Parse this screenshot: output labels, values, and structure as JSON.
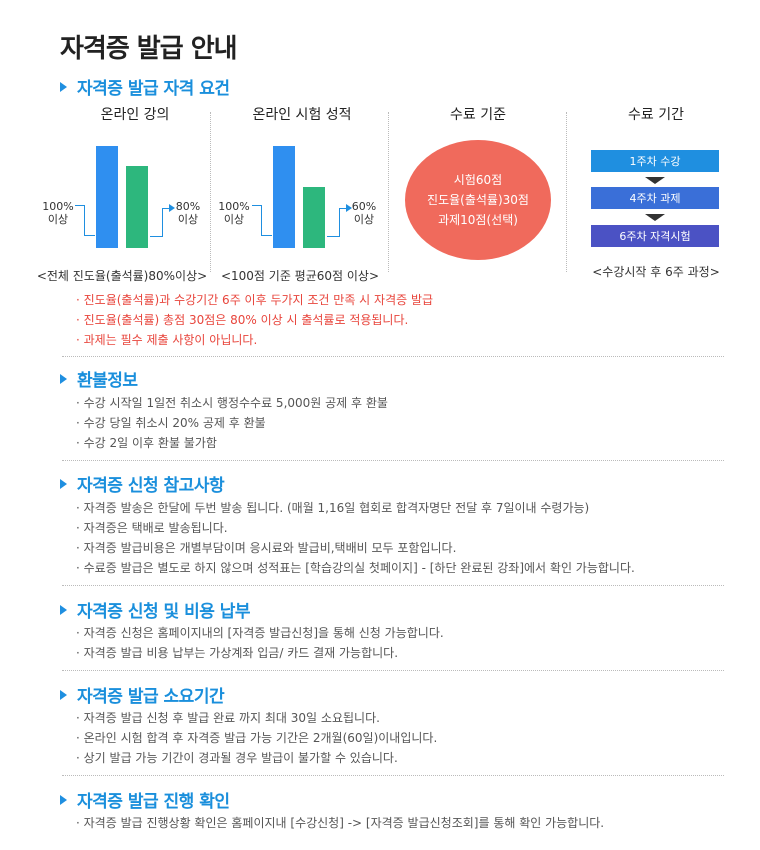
{
  "page_title": "자격증 발급 안내",
  "sections": {
    "requirements": {
      "title": "자격증 발급 자격 요건"
    },
    "refund": {
      "title": "환불정보"
    },
    "apply_notes": {
      "title": "자격증 신청 참고사항"
    },
    "apply_payment": {
      "title": "자격증 신청 및 비용 납부"
    },
    "duration": {
      "title": "자격증 발급 소요기간"
    },
    "progress": {
      "title": "자격증 발급 진행 확인"
    }
  },
  "columns": {
    "online_lecture": {
      "label": "온라인 강의",
      "left_value": "100%",
      "left_sub": "이상",
      "right_value": "80%",
      "right_sub": "이상",
      "bar_values": [
        100,
        80
      ],
      "caption": "<전체 진도율(출석률)80%이상>"
    },
    "online_exam": {
      "label": "온라인 시험 성적",
      "left_value": "100%",
      "left_sub": "이상",
      "right_value": "60%",
      "right_sub": "이상",
      "bar_values": [
        100,
        60
      ],
      "caption": "<100점 기준 평균60점 이상>"
    },
    "completion_criteria": {
      "label": "수료 기준",
      "lines": [
        "시험60점",
        "진도율(출석률)30점",
        "과제10점(선택)"
      ]
    },
    "completion_period": {
      "label": "수료 기간",
      "steps": [
        "1주차 수강",
        "4주차 과제",
        "6주차 자격시험"
      ],
      "caption": "<수강시작 후 6주 과정>"
    }
  },
  "colors": {
    "accent": "#1a8fdc",
    "bar_blue": "#2f8ff0",
    "bar_green": "#2db77d",
    "circle": "#f06a5c",
    "step1": "#1f8fe0",
    "step2": "#3a6fd8",
    "step3": "#4b52c4",
    "note_red": "#e8453c"
  },
  "requirement_notes": [
    "· 진도율(출석률)과 수강기간 6주 이후 두가지 조건 만족 시 자격증 발급",
    "· 진도율(출석률) 총점 30점은 80% 이상 시 출석률로 적용됩니다.",
    "· 과제는 필수 제출 사항이 아닙니다."
  ],
  "refund_lines": [
    "· 수강 시작일 1일전 취소시 행정수수료 5,000원 공제 후 환불",
    "· 수강 당일 취소시 20% 공제 후 환불",
    "· 수강 2일 이후 환불 불가함"
  ],
  "apply_notes_lines": [
    "· 자격증 발송은 한달에 두번 발송 됩니다. (매월 1,16일 협회로 합격자명단 전달 후 7일이내 수령가능)",
    "· 자격증은 택배로 발송됩니다.",
    "· 자격증 발급비용은 개별부담이며 응시료와 발급비,택배비 모두 포함입니다.",
    "· 수료증 발급은 별도로 하지 않으며 성적표는 [학습강의실 첫페이지] - [하단 완료된 강좌]에서 확인 가능합니다."
  ],
  "apply_payment_lines": [
    "· 자격증 신청은 홈페이지내의 [자격증 발급신청]을 통해 신청 가능합니다.",
    "· 자격증 발급 비용 납부는 가상계좌 입금/ 카드 결재 가능합니다."
  ],
  "duration_lines": [
    "· 자격증 발급 신청 후 발급 완료 까지 최대 30일 소요됩니다.",
    "· 온라인 시험 합격 후 자격증 발급 가능 기간은 2개월(60일)이내입니다.",
    "· 상기 발급 가능 기간이 경과될 경우 발급이 불가할 수 있습니다."
  ],
  "progress_lines": [
    "· 자격증 발급 진행상황 확인은 홈페이지내 [수강신청] -> [자격증 발급신청조회]를 통해 확인 가능합니다."
  ]
}
